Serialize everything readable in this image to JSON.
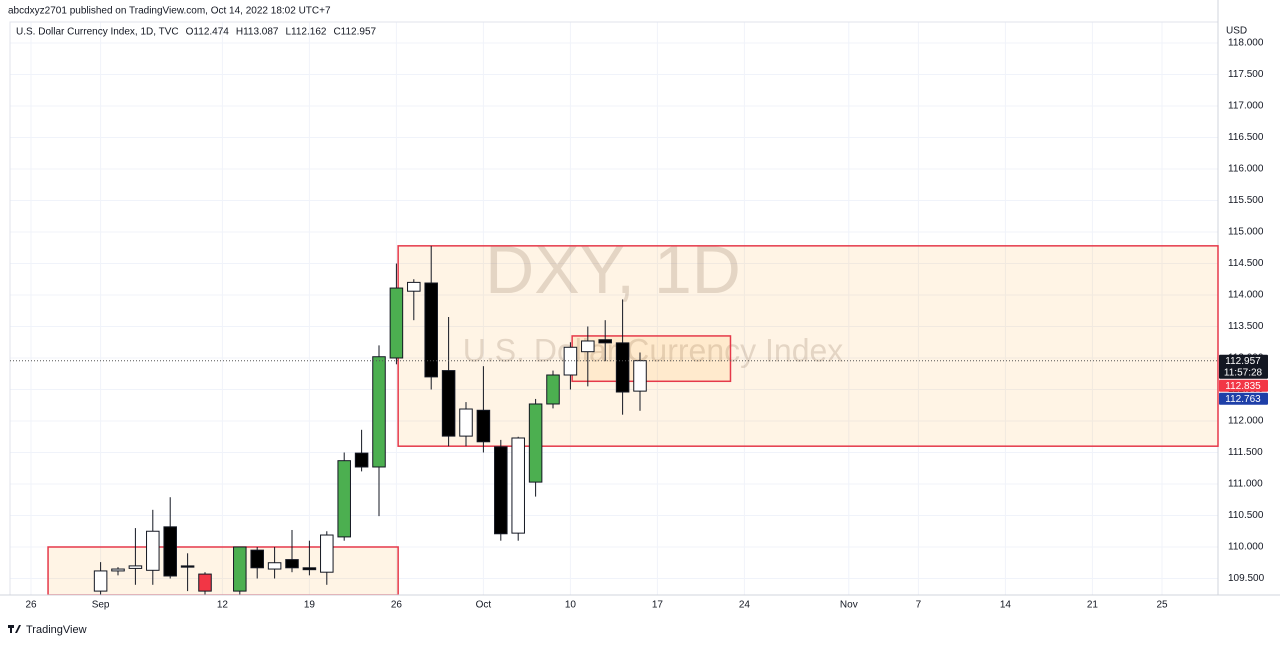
{
  "header": {
    "publisher": "abcdxyz2701 published on TradingView.com, Oct 14, 2022 18:02 UTC+7",
    "footer": "TradingView"
  },
  "chart_data": {
    "type": "candlestick",
    "legend_texts": [
      "U.S. Dollar Currency Index, 1D, TVC",
      "O112.474",
      "H113.087",
      "L112.162",
      "C112.957"
    ],
    "watermark": [
      "DXY, 1D",
      "U.S. Dollar Currency Index"
    ],
    "currency": "USD",
    "grid": true,
    "xlim": [
      -1.207,
      68.218
    ],
    "ylim": [
      109.238,
      118.333
    ],
    "xticks": [
      {
        "value": 0,
        "label": "26"
      },
      {
        "value": 4,
        "label": "Sep"
      },
      {
        "value": 11,
        "label": "12"
      },
      {
        "value": 16,
        "label": "19"
      },
      {
        "value": 21,
        "label": "26"
      },
      {
        "value": 26,
        "label": "Oct"
      },
      {
        "value": 31,
        "label": "10"
      },
      {
        "value": 36,
        "label": "17"
      },
      {
        "value": 41,
        "label": "24"
      },
      {
        "value": 47,
        "label": "Nov"
      },
      {
        "value": 51,
        "label": "7"
      },
      {
        "value": 56,
        "label": "14"
      },
      {
        "value": 61,
        "label": "21"
      },
      {
        "value": 65,
        "label": "25"
      }
    ],
    "yticks": [
      {
        "value": 109.5,
        "label": "109.500"
      },
      {
        "value": 110,
        "label": "110.000"
      },
      {
        "value": 110.5,
        "label": "110.500"
      },
      {
        "value": 111,
        "label": "111.000"
      },
      {
        "value": 111.5,
        "label": "111.500"
      },
      {
        "value": 112,
        "label": "112.000"
      },
      {
        "value": 112.5,
        "label": "112.500"
      },
      {
        "value": 113,
        "label": "113.000"
      },
      {
        "value": 113.5,
        "label": "113.500"
      },
      {
        "value": 114,
        "label": "114.000"
      },
      {
        "value": 114.5,
        "label": "114.500"
      },
      {
        "value": 115,
        "label": "115.000"
      },
      {
        "value": 115.5,
        "label": "115.500"
      },
      {
        "value": 116,
        "label": "116.000"
      },
      {
        "value": 116.5,
        "label": "116.500"
      },
      {
        "value": 117,
        "label": "117.000"
      },
      {
        "value": 117.5,
        "label": "117.500"
      },
      {
        "value": 118,
        "label": "118.000"
      }
    ],
    "zones": [
      {
        "x1": 0.98,
        "x2": 21.1,
        "y1": 110.0,
        "y2": 109.238
      },
      {
        "x1": 21.1,
        "x2": 68.218,
        "y1": 114.78,
        "y2": 111.6
      },
      {
        "x1": 31.1,
        "x2": 40.2,
        "y1": 113.35,
        "y2": 112.63
      }
    ],
    "price_labels": [
      {
        "value": 112.957,
        "label": "112.957",
        "color": "#131722",
        "sub": "11:57:28"
      },
      {
        "value": 112.835,
        "label": "112.835",
        "color": "#f23645"
      },
      {
        "value": 112.763,
        "label": "112.763",
        "color": "#1e3fa8"
      }
    ],
    "candles": [
      {
        "x": 4,
        "open": 109.3,
        "high": 109.76,
        "low": 109.238,
        "close": 109.62,
        "color": "#ffffff"
      },
      {
        "x": 5,
        "open": 109.62,
        "high": 109.68,
        "low": 109.55,
        "close": 109.65,
        "color": "#ffffff"
      },
      {
        "x": 6,
        "open": 109.66,
        "high": 110.3,
        "low": 109.4,
        "close": 109.7,
        "color": "#ffffff"
      },
      {
        "x": 7,
        "open": 109.63,
        "high": 110.59,
        "low": 109.4,
        "close": 110.25,
        "color": "#ffffff"
      },
      {
        "x": 8,
        "open": 110.32,
        "high": 110.79,
        "low": 109.5,
        "close": 109.54,
        "color": "#000000"
      },
      {
        "x": 9,
        "open": 109.7,
        "high": 109.9,
        "low": 109.3,
        "close": 109.68,
        "color": "#000000"
      },
      {
        "x": 10,
        "open": 109.57,
        "high": 109.6,
        "low": 109.238,
        "close": 109.3,
        "color": "#f23645"
      },
      {
        "x": 12,
        "open": 109.3,
        "high": 110.0,
        "low": 109.238,
        "close": 110.0,
        "color": "#4caf50"
      },
      {
        "x": 13,
        "open": 109.95,
        "high": 110.0,
        "low": 109.5,
        "close": 109.67,
        "color": "#000000"
      },
      {
        "x": 14,
        "open": 109.65,
        "high": 110.0,
        "low": 109.5,
        "close": 109.75,
        "color": "#ffffff"
      },
      {
        "x": 15,
        "open": 109.8,
        "high": 110.27,
        "low": 109.6,
        "close": 109.67,
        "color": "#000000"
      },
      {
        "x": 16,
        "open": 109.67,
        "high": 110.1,
        "low": 109.55,
        "close": 109.64,
        "color": "#000000"
      },
      {
        "x": 17,
        "open": 109.6,
        "high": 110.25,
        "low": 109.4,
        "close": 110.19,
        "color": "#ffffff"
      },
      {
        "x": 18,
        "open": 110.16,
        "high": 111.5,
        "low": 110.1,
        "close": 111.37,
        "color": "#4caf50"
      },
      {
        "x": 19,
        "open": 111.49,
        "high": 111.86,
        "low": 111.2,
        "close": 111.27,
        "color": "#000000"
      },
      {
        "x": 20,
        "open": 111.27,
        "high": 113.2,
        "low": 110.49,
        "close": 113.02,
        "color": "#4caf50"
      },
      {
        "x": 21,
        "open": 113.0,
        "high": 114.5,
        "low": 112.9,
        "close": 114.11,
        "color": "#4caf50"
      },
      {
        "x": 22,
        "open": 114.06,
        "high": 114.25,
        "low": 113.6,
        "close": 114.2,
        "color": "#ffffff"
      },
      {
        "x": 23,
        "open": 114.19,
        "high": 114.78,
        "low": 112.5,
        "close": 112.7,
        "color": "#000000"
      },
      {
        "x": 24,
        "open": 112.8,
        "high": 113.65,
        "low": 111.6,
        "close": 111.76,
        "color": "#000000"
      },
      {
        "x": 25,
        "open": 111.76,
        "high": 112.3,
        "low": 111.6,
        "close": 112.19,
        "color": "#ffffff"
      },
      {
        "x": 26,
        "open": 112.17,
        "high": 112.87,
        "low": 111.5,
        "close": 111.67,
        "color": "#000000"
      },
      {
        "x": 27,
        "open": 111.59,
        "high": 111.7,
        "low": 110.1,
        "close": 110.21,
        "color": "#000000"
      },
      {
        "x": 28,
        "open": 110.22,
        "high": 111.75,
        "low": 110.1,
        "close": 111.73,
        "color": "#ffffff"
      },
      {
        "x": 29,
        "open": 111.03,
        "high": 112.35,
        "low": 110.8,
        "close": 112.27,
        "color": "#4caf50"
      },
      {
        "x": 30,
        "open": 112.27,
        "high": 112.8,
        "low": 112.2,
        "close": 112.73,
        "color": "#4caf50"
      },
      {
        "x": 31,
        "open": 112.73,
        "high": 113.25,
        "low": 112.5,
        "close": 113.17,
        "color": "#ffffff"
      },
      {
        "x": 32,
        "open": 113.1,
        "high": 113.5,
        "low": 112.55,
        "close": 113.27,
        "color": "#ffffff"
      },
      {
        "x": 33,
        "open": 113.29,
        "high": 113.6,
        "low": 112.95,
        "close": 113.24,
        "color": "#000000"
      },
      {
        "x": 34,
        "open": 113.24,
        "high": 113.93,
        "low": 112.1,
        "close": 112.46,
        "color": "#000000"
      },
      {
        "x": 35,
        "open": 112.474,
        "high": 113.087,
        "low": 112.162,
        "close": 112.957,
        "color": "#ffffff"
      }
    ]
  }
}
